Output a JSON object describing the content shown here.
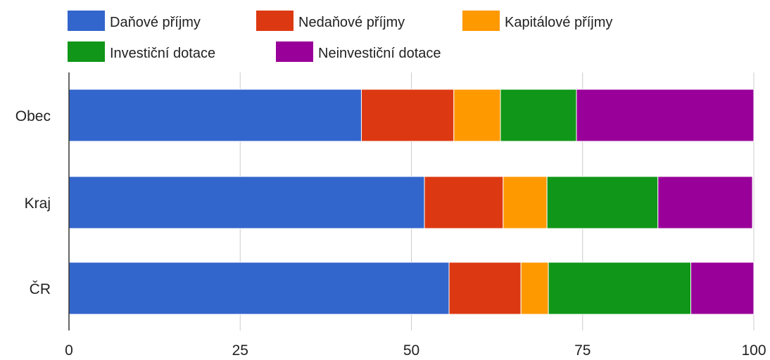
{
  "chart_data": {
    "type": "bar",
    "orientation": "horizontal",
    "stacked": "percent",
    "categories": [
      "Obec",
      "Kraj",
      "ČR"
    ],
    "series": [
      {
        "name": "Daňové příjmy",
        "color": "#3366cc",
        "values": [
          42.7,
          51.9,
          55.5
        ]
      },
      {
        "name": "Nedaňové příjmy",
        "color": "#dc3912",
        "values": [
          13.5,
          11.5,
          10.5
        ]
      },
      {
        "name": "Kapitálové příjmy",
        "color": "#ff9900",
        "values": [
          6.8,
          6.4,
          4.0
        ]
      },
      {
        "name": "Investiční dotace",
        "color": "#109618",
        "values": [
          11.1,
          16.2,
          20.8
        ]
      },
      {
        "name": "Neinvestiční dotace",
        "color": "#990099",
        "values": [
          25.9,
          13.8,
          9.2
        ]
      }
    ],
    "xlim": [
      0,
      100
    ],
    "xticks": [
      0,
      25,
      50,
      75,
      100
    ],
    "grid": true,
    "legend_position": "top"
  }
}
